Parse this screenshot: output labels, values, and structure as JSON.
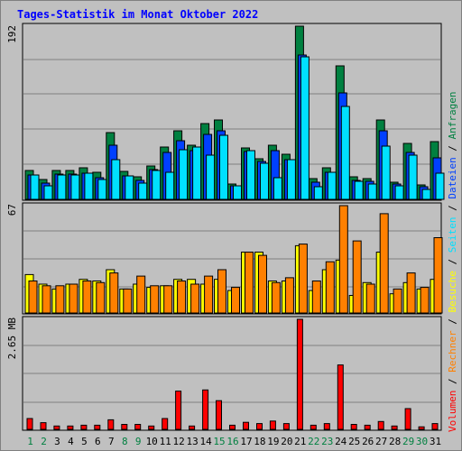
{
  "title": "Tages-Statistik im Monat Oktober 2022",
  "colors": {
    "anfragen": "#008040",
    "dateien": "#0040ff",
    "seiten": "#00e0ff",
    "besuche": "#ffff00",
    "rechner": "#ff8000",
    "volumen": "#ff0000",
    "weekday_label": "#000000",
    "weekend_label": "#008040"
  },
  "chart_data": {
    "type": "bar",
    "title": "Tages-Statistik im Monat Oktober 2022",
    "x": [
      1,
      2,
      3,
      4,
      5,
      6,
      7,
      8,
      9,
      10,
      11,
      12,
      13,
      14,
      15,
      16,
      17,
      18,
      19,
      20,
      21,
      22,
      23,
      24,
      25,
      26,
      27,
      28,
      29,
      30,
      31
    ],
    "x_tick_labels": [
      "1",
      "2",
      "3",
      "4",
      "5",
      "6",
      "7",
      "8",
      "9",
      "10",
      "11",
      "12",
      "13",
      "14",
      "15",
      "16",
      "17",
      "18",
      "19",
      "20",
      "21",
      "22",
      "23",
      "24",
      "25",
      "26",
      "27",
      "28",
      "29",
      "30",
      "31"
    ],
    "weekend_days": [
      1,
      2,
      8,
      9,
      15,
      16,
      22,
      23,
      29,
      30
    ],
    "panels": [
      {
        "name": "requests",
        "max_label": "192",
        "ylim": [
          0,
          192
        ],
        "legend": [
          "Anfragen",
          "Dateien",
          "Seiten"
        ],
        "series": [
          {
            "name": "Anfragen",
            "color_key": "anfragen",
            "values": [
              32,
              22,
              32,
              32,
              35,
              30,
              74,
              31,
              25,
              37,
              58,
              76,
              60,
              84,
              88,
              17,
              57,
              45,
              60,
              50,
              192,
              23,
              35,
              148,
              25,
              23,
              88,
              19,
              62,
              16,
              64
            ]
          },
          {
            "name": "Dateien",
            "color_key": "dateien",
            "values": [
              27,
              18,
              28,
              28,
              29,
              24,
              60,
              26,
              21,
              33,
              52,
              65,
              54,
              72,
              76,
              15,
              53,
              42,
              54,
              44,
              160,
              19,
              30,
              118,
              21,
              20,
              76,
              17,
              52,
              14,
              46
            ]
          },
          {
            "name": "Seiten",
            "color_key": "seiten",
            "values": [
              27,
              15,
              27,
              27,
              29,
              22,
              44,
              26,
              18,
              32,
              30,
              55,
              58,
              49,
              71,
              15,
              54,
              40,
              24,
              44,
              158,
              14,
              30,
              103,
              20,
              17,
              59,
              15,
              49,
              11,
              29
            ]
          }
        ]
      },
      {
        "name": "visits",
        "max_label": "67",
        "ylim": [
          0,
          67
        ],
        "legend": [
          "Besuche",
          "Rechner"
        ],
        "series": [
          {
            "name": "Besuche",
            "color_key": "besuche",
            "values": [
              24,
              18,
              15,
              18,
              21,
              20,
              27,
              15,
              18,
              16,
              17,
              21,
              21,
              18,
              21,
              14,
              38,
              38,
              20,
              20,
              42,
              14,
              27,
              33,
              11,
              19,
              38,
              12,
              19,
              15,
              21
            ]
          },
          {
            "name": "Rechner",
            "color_key": "rechner",
            "values": [
              20,
              17,
              17,
              18,
              20,
              19,
              25,
              15,
              23,
              17,
              17,
              20,
              18,
              23,
              27,
              16,
              38,
              36,
              19,
              22,
              43,
              20,
              32,
              67,
              45,
              18,
              62,
              15,
              25,
              16,
              47
            ]
          }
        ]
      },
      {
        "name": "volume",
        "max_label": "2.65 MB",
        "ylim": [
          0,
          2.65
        ],
        "legend": [
          "Volumen"
        ],
        "series": [
          {
            "name": "Volumen",
            "color_key": "volumen",
            "values": [
              0.26,
              0.16,
              0.08,
              0.08,
              0.1,
              0.1,
              0.23,
              0.12,
              0.12,
              0.08,
              0.26,
              0.92,
              0.08,
              0.95,
              0.69,
              0.1,
              0.17,
              0.14,
              0.2,
              0.14,
              2.65,
              0.1,
              0.14,
              1.55,
              0.12,
              0.1,
              0.19,
              0.08,
              0.5,
              0.06,
              0.14
            ]
          }
        ]
      }
    ]
  }
}
